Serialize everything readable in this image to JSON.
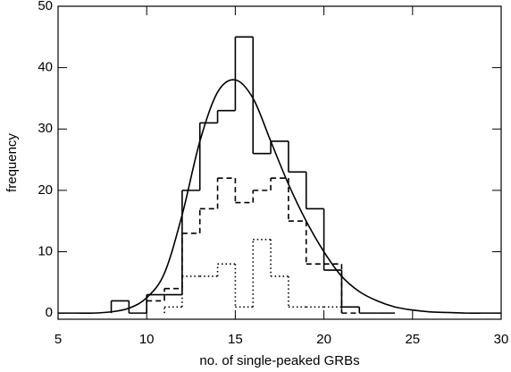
{
  "chart_data": {
    "type": "histogram",
    "xlabel": "no. of single-peaked GRBs",
    "ylabel": "frequency",
    "xlim": [
      5,
      30
    ],
    "ylim": [
      -1,
      50
    ],
    "xticks": [
      5,
      10,
      15,
      20,
      25,
      30
    ],
    "yticks": [
      0,
      10,
      20,
      30,
      40,
      50
    ],
    "series": [
      {
        "color": "#000000",
        "dash": "solid",
        "bins": [
          8,
          9,
          10,
          11,
          12,
          13,
          14,
          15,
          16,
          17,
          18,
          19,
          20,
          21,
          22,
          23,
          24
        ],
        "values": [
          2,
          0,
          3,
          3,
          20,
          31,
          33,
          45,
          26,
          28,
          23,
          17,
          7,
          1,
          0,
          0
        ]
      },
      {
        "color": "#000000",
        "dash": "dashed",
        "bins": [
          10,
          11,
          12,
          13,
          14,
          15,
          16,
          17,
          18,
          19,
          20,
          21,
          22
        ],
        "values": [
          2,
          4,
          13,
          17,
          22,
          18,
          20,
          22,
          15,
          8,
          8,
          0
        ]
      },
      {
        "color": "#000000",
        "dash": "dotted",
        "bins": [
          11,
          12,
          13,
          14,
          15,
          16,
          17,
          18,
          19,
          20,
          21
        ],
        "values": [
          1,
          6,
          6,
          8,
          1,
          12,
          6,
          1,
          1,
          1
        ]
      }
    ],
    "fit": {
      "color": "#000000",
      "x": [
        5,
        6,
        7,
        8,
        9,
        10,
        11,
        12,
        13,
        14,
        15,
        16,
        17,
        18,
        19,
        20,
        21,
        22,
        23,
        24,
        25,
        26,
        27,
        28,
        29,
        30
      ],
      "values": [
        0,
        0,
        0,
        0.2,
        0.8,
        2.5,
        6.5,
        16,
        28,
        36,
        38,
        35,
        28,
        21,
        15,
        10,
        6,
        3.5,
        2,
        1,
        0.5,
        0.2,
        0.1,
        0,
        0,
        0
      ]
    }
  }
}
